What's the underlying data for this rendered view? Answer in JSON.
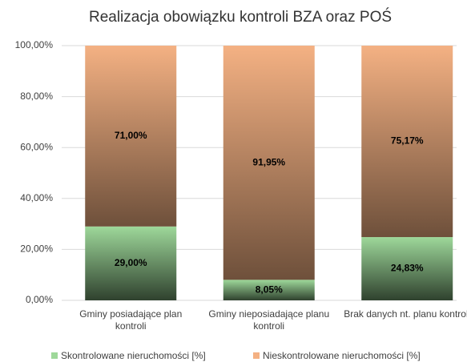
{
  "chart_data": {
    "type": "stacked_bar",
    "title": "Realizacja obowiązku kontroli BZA oraz POŚ",
    "categories": [
      "Gminy posiadające plan kontroli",
      "Gminy nieposiadające planu kontroli",
      "Brak danych nt. planu kontroli"
    ],
    "series": [
      {
        "name": "Skontrolowane nieruchomości [%]",
        "color": "#9ed89a",
        "values": [
          29.0,
          8.05,
          24.83
        ],
        "value_labels": [
          "29,00%",
          "8,05%",
          "24,83%"
        ]
      },
      {
        "name": "Nieskontrolowane nieruchomości [%]",
        "color": "#f4b183",
        "values": [
          71.0,
          91.95,
          75.17
        ],
        "value_labels": [
          "71,00%",
          "91,95%",
          "75,17%"
        ]
      }
    ],
    "ylim": [
      0,
      100
    ],
    "yticks": [
      {
        "value": 0,
        "label": "0,00%"
      },
      {
        "value": 20,
        "label": "20,00%"
      },
      {
        "value": 40,
        "label": "40,00%"
      },
      {
        "value": 60,
        "label": "60,00%"
      },
      {
        "value": 80,
        "label": "80,00%"
      },
      {
        "value": 100,
        "label": "100,00%"
      }
    ],
    "grid": true,
    "legend": "bottom"
  }
}
